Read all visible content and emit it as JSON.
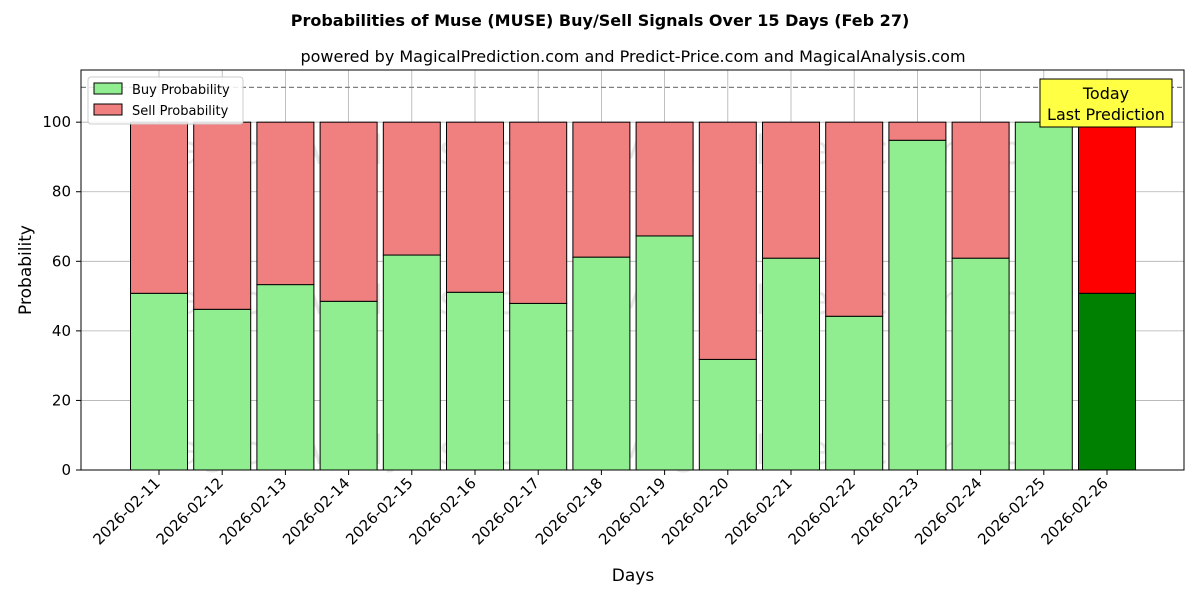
{
  "chart_data": {
    "type": "bar",
    "title": "Probabilities of Muse (MUSE) Buy/Sell Signals Over 15 Days (Feb 27)",
    "subtitle": "powered by MagicalPrediction.com and Predict-Price.com and MagicalAnalysis.com",
    "xlabel": "Days",
    "ylabel": "Probability",
    "ylim": [
      0,
      115
    ],
    "yticks": [
      0,
      20,
      40,
      60,
      80,
      100
    ],
    "reference_line": 110,
    "grid": true,
    "legend_position": "top-left",
    "categories": [
      "2026-02-11",
      "2026-02-12",
      "2026-02-13",
      "2026-02-14",
      "2026-02-15",
      "2026-02-16",
      "2026-02-17",
      "2026-02-18",
      "2026-02-19",
      "2026-02-20",
      "2026-02-21",
      "2026-02-22",
      "2026-02-23",
      "2026-02-24",
      "2026-02-25",
      "2026-02-26"
    ],
    "series": [
      {
        "name": "Buy Probability",
        "values": [
          50.8,
          46.2,
          53.3,
          48.5,
          61.8,
          51.1,
          47.9,
          61.2,
          67.3,
          31.8,
          60.9,
          44.2,
          94.8,
          60.9,
          100,
          50.8
        ],
        "color": "#90ee90",
        "highlight_color": "#008000"
      },
      {
        "name": "Sell Probability",
        "values": [
          49.2,
          53.8,
          46.7,
          51.5,
          38.2,
          48.9,
          52.1,
          38.8,
          32.7,
          68.2,
          39.1,
          55.8,
          5.2,
          39.1,
          0,
          49.2
        ],
        "color": "#f08080",
        "highlight_color": "#ff0000"
      }
    ],
    "annotation": {
      "line1": "Today",
      "line2": "Last Prediction",
      "background": "#ffff44"
    },
    "watermarks": [
      "MagicalAnalysis.com",
      "MagicalPrediction.com"
    ]
  }
}
